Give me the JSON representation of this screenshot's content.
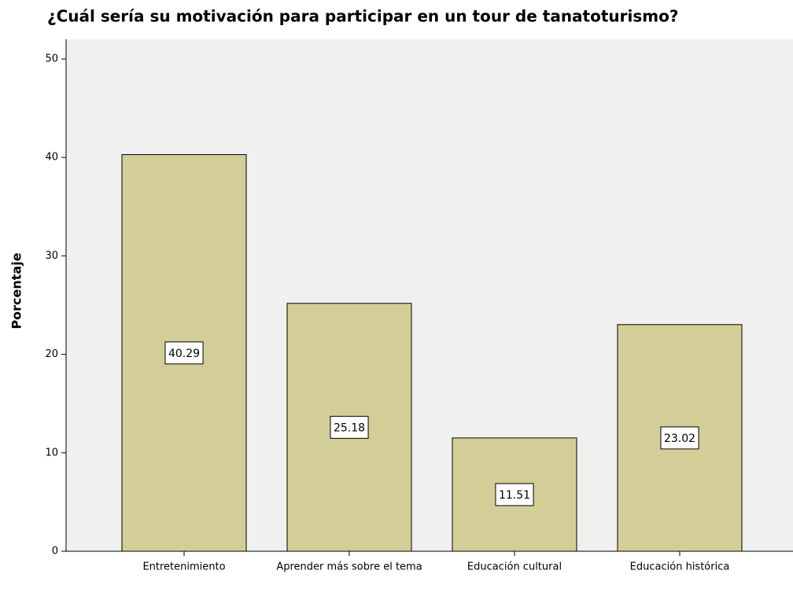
{
  "chart_data": {
    "type": "bar",
    "title": "¿Cuál sería su motivación para participar en un tour de tanatoturismo?",
    "y_label": "Porcentaje",
    "categories": [
      "Entretenimiento",
      "Aprender más sobre el tema",
      "Educación cultural",
      "Educación histórica"
    ],
    "values": [
      40.29,
      25.18,
      11.51,
      23.02
    ],
    "color": "#d3ce97",
    "ylim": [
      0,
      50
    ],
    "yticks": [
      0,
      10,
      20,
      30,
      40,
      50
    ],
    "grid": false
  }
}
